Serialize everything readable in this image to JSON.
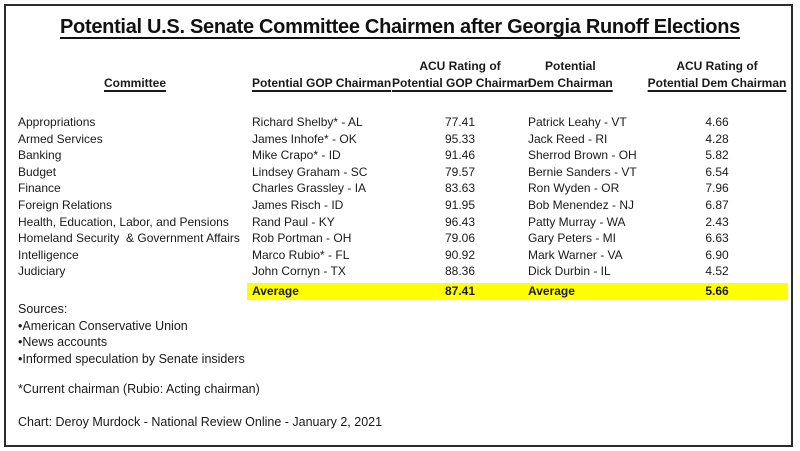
{
  "chart_data": {
    "type": "table",
    "title": "Potential U.S. Senate Committee Chairmen after Georgia Runoff Elections",
    "columns": [
      "Committee",
      "Potential GOP Chairman",
      "ACU Rating of Potential GOP Chairman",
      "Potential Dem Chairman",
      "ACU Rating of Potential Dem Chairman"
    ],
    "rows": [
      {
        "committee": "Appropriations",
        "gop_chairman": "Richard Shelby* - AL",
        "gop_acu": "77.41",
        "dem_chairman": "Patrick Leahy - VT",
        "dem_acu": "4.66"
      },
      {
        "committee": "Armed Services",
        "gop_chairman": "James Inhofe* - OK",
        "gop_acu": "95.33",
        "dem_chairman": "Jack Reed - RI",
        "dem_acu": "4.28"
      },
      {
        "committee": "Banking",
        "gop_chairman": "Mike Crapo* - ID",
        "gop_acu": "91.46",
        "dem_chairman": "Sherrod Brown - OH",
        "dem_acu": "5.82"
      },
      {
        "committee": "Budget",
        "gop_chairman": "Lindsey Graham - SC",
        "gop_acu": "79.57",
        "dem_chairman": "Bernie Sanders - VT",
        "dem_acu": "6.54"
      },
      {
        "committee": "Finance",
        "gop_chairman": "Charles Grassley - IA",
        "gop_acu": "83.63",
        "dem_chairman": "Ron Wyden - OR",
        "dem_acu": "7.96"
      },
      {
        "committee": "Foreign Relations",
        "gop_chairman": "James Risch - ID",
        "gop_acu": "91.95",
        "dem_chairman": "Bob Menendez - NJ",
        "dem_acu": "6.87"
      },
      {
        "committee": "Health, Education, Labor, and Pensions",
        "gop_chairman": "Rand Paul - KY",
        "gop_acu": "96.43",
        "dem_chairman": "Patty Murray - WA",
        "dem_acu": "2.43"
      },
      {
        "committee": "Homeland Security  & Government Affairs",
        "gop_chairman": "Rob Portman - OH",
        "gop_acu": "79.06",
        "dem_chairman": "Gary Peters - MI",
        "dem_acu": "6.63"
      },
      {
        "committee": "Intelligence",
        "gop_chairman": "Marco Rubio* - FL",
        "gop_acu": "90.92",
        "dem_chairman": "Mark Warner - VA",
        "dem_acu": "6.90"
      },
      {
        "committee": "Judiciary",
        "gop_chairman": "John Cornyn - TX",
        "gop_acu": "88.36",
        "dem_chairman": "Dick Durbin - IL",
        "dem_acu": "4.52"
      }
    ],
    "average": {
      "gop_label": "Average",
      "gop_acu": "87.41",
      "dem_label": "Average",
      "dem_acu": "5.66"
    },
    "highlight_color": "#FFFF00"
  },
  "header": {
    "committee": "Committee",
    "gop_chairman": "Potential GOP Chairman",
    "gop_acu_line1": "ACU Rating of",
    "gop_acu_line2": "Potential GOP Chairman",
    "dem_line1": "Potential",
    "dem_line2": "Dem Chairman",
    "dem_acu_line1": "ACU Rating of",
    "dem_acu_line2": "Potential Dem Chairman"
  },
  "footnotes": {
    "sources_label": "Sources:",
    "bullet": "•",
    "sources": [
      "American Conservative Union",
      "News accounts",
      "Informed speculation by Senate insiders"
    ],
    "chairman_note": "*Current chairman (Rubio: Acting chairman)",
    "credit": "Chart: Deroy Murdock - National Review Online - January 2, 2021"
  }
}
